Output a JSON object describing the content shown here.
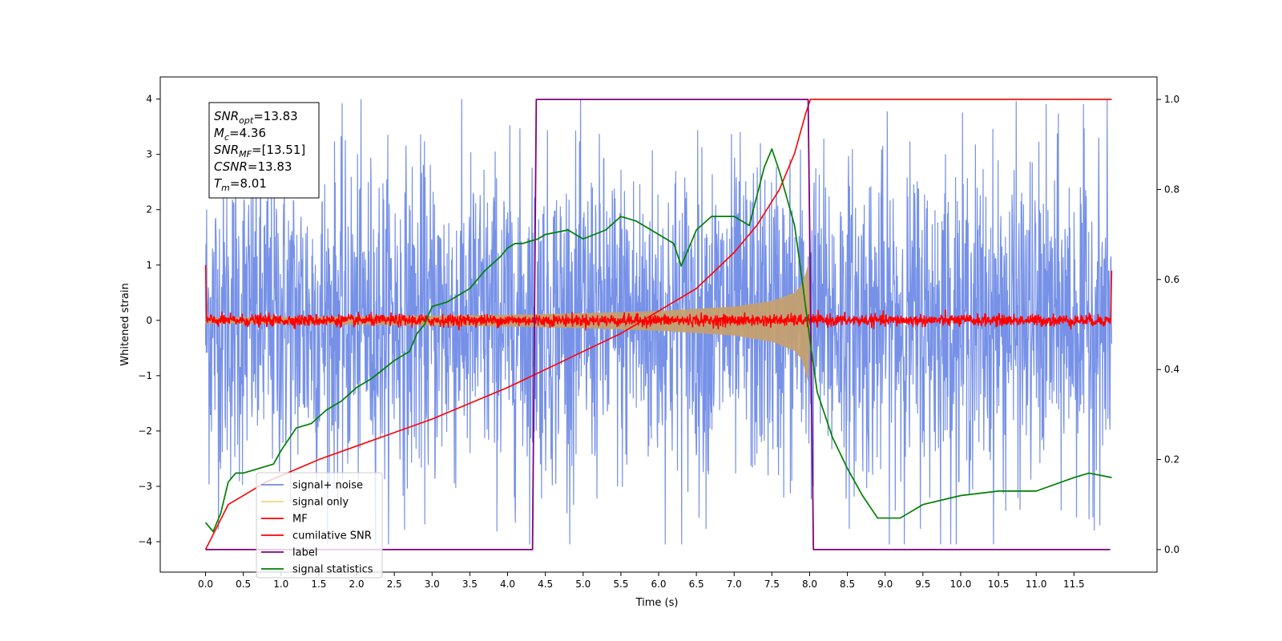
{
  "chart_data": {
    "type": "line",
    "xlabel": "Time (s)",
    "ylabel_left": "Whitened strain",
    "xlim": [
      -0.6,
      12.6
    ],
    "ylim_left": [
      -4.55,
      4.4
    ],
    "ylim_right": [
      -0.05,
      1.05
    ],
    "x_ticks": [
      "0.0",
      "0.5",
      "1.0",
      "1.5",
      "2.0",
      "2.5",
      "3.0",
      "3.5",
      "4.0",
      "4.5",
      "5.0",
      "5.5",
      "6.0",
      "6.5",
      "7.0",
      "7.5",
      "8.0",
      "8.5",
      "9.0",
      "9.5",
      "10.0",
      "10.5",
      "11.0",
      "11.5"
    ],
    "y_ticks_left": [
      "−4",
      "−3",
      "−2",
      "−1",
      "0",
      "1",
      "2",
      "3",
      "4"
    ],
    "y_ticks_right": [
      "0.0",
      "0.2",
      "0.4",
      "0.6",
      "0.8",
      "1.0"
    ],
    "stats_box": [
      {
        "base": "SNR",
        "sub": "opt",
        "rest": "=13.83"
      },
      {
        "base": "M",
        "sub": "c",
        "rest": "=4.36"
      },
      {
        "base": "SNR",
        "sub": "MF",
        "rest": "=[13.51]"
      },
      {
        "base": "CSNR",
        "sub": "",
        "rest": "=13.83"
      },
      {
        "base": "T",
        "sub": "m",
        "rest": "=8.01"
      }
    ],
    "legend": [
      {
        "label": "signal+ noise",
        "color": "#6f8be6"
      },
      {
        "label": "signal only",
        "color": "#f5d27a"
      },
      {
        "label": "MF",
        "color": "#ff0000"
      },
      {
        "label": "cumilative SNR",
        "color": "#ff0000"
      },
      {
        "label": "label",
        "color": "#800080"
      },
      {
        "label": "signal statistics",
        "color": "#008000"
      }
    ],
    "legend_position": "lower left",
    "series": [
      {
        "name": "signal+ noise",
        "axis": "left",
        "color": "#6f8be6",
        "x_range": [
          0,
          12
        ],
        "amplitude": 2.0,
        "peak": 4.0,
        "trough": -4.05
      },
      {
        "name": "signal only",
        "axis": "left",
        "color": "#c4a070",
        "x_range": [
          0,
          8.01
        ],
        "x": [
          0,
          2,
          4,
          5,
          6,
          7,
          7.5,
          7.8,
          7.9,
          8.0,
          8.01
        ],
        "envelope": [
          0.05,
          0.07,
          0.1,
          0.13,
          0.17,
          0.25,
          0.35,
          0.5,
          0.65,
          1.1,
          0
        ]
      },
      {
        "name": "MF",
        "axis": "left",
        "color": "#ff0000",
        "x_range": [
          0,
          12
        ],
        "amplitude": 0.12
      },
      {
        "name": "cumilative SNR",
        "axis": "right",
        "color": "#ff0000",
        "x": [
          0,
          0.3,
          0.8,
          1.5,
          2.0,
          3.0,
          4.0,
          4.5,
          5.0,
          5.5,
          6.0,
          6.5,
          7.0,
          7.3,
          7.6,
          7.8,
          7.95,
          8.01,
          12.0
        ],
        "y": [
          0.0,
          0.1,
          0.15,
          0.2,
          0.23,
          0.29,
          0.36,
          0.4,
          0.44,
          0.48,
          0.53,
          0.58,
          0.66,
          0.72,
          0.8,
          0.88,
          0.97,
          1.0,
          1.0
        ]
      },
      {
        "name": "label",
        "axis": "right",
        "color": "#800080",
        "x": [
          0,
          4.33,
          4.38,
          7.98,
          8.05,
          11.98
        ],
        "y": [
          0,
          0,
          1,
          1,
          0,
          0
        ]
      },
      {
        "name": "signal statistics",
        "axis": "right",
        "color": "#008000",
        "x": [
          0,
          0.1,
          0.2,
          0.3,
          0.4,
          0.5,
          0.7,
          0.9,
          1.0,
          1.2,
          1.4,
          1.6,
          1.8,
          2.0,
          2.2,
          2.5,
          2.7,
          2.8,
          2.9,
          3.0,
          3.2,
          3.5,
          3.7,
          3.9,
          4.0,
          4.1,
          4.2,
          4.4,
          4.5,
          4.8,
          5.0,
          5.3,
          5.5,
          5.7,
          6.0,
          6.2,
          6.3,
          6.5,
          6.7,
          7.0,
          7.2,
          7.4,
          7.5,
          7.6,
          7.7,
          7.8,
          7.9,
          8.0,
          8.1,
          8.3,
          8.5,
          8.7,
          8.9,
          9.2,
          9.5,
          10.0,
          10.5,
          11.0,
          11.5,
          11.7,
          12.0
        ],
        "y": [
          0.06,
          0.04,
          0.08,
          0.15,
          0.17,
          0.17,
          0.18,
          0.19,
          0.22,
          0.27,
          0.28,
          0.31,
          0.33,
          0.36,
          0.38,
          0.42,
          0.44,
          0.48,
          0.5,
          0.54,
          0.55,
          0.58,
          0.62,
          0.65,
          0.67,
          0.68,
          0.68,
          0.69,
          0.7,
          0.71,
          0.69,
          0.71,
          0.74,
          0.73,
          0.7,
          0.68,
          0.63,
          0.71,
          0.74,
          0.74,
          0.72,
          0.85,
          0.89,
          0.84,
          0.78,
          0.72,
          0.6,
          0.47,
          0.35,
          0.25,
          0.18,
          0.12,
          0.07,
          0.07,
          0.1,
          0.12,
          0.13,
          0.13,
          0.16,
          0.17,
          0.16
        ]
      }
    ]
  }
}
